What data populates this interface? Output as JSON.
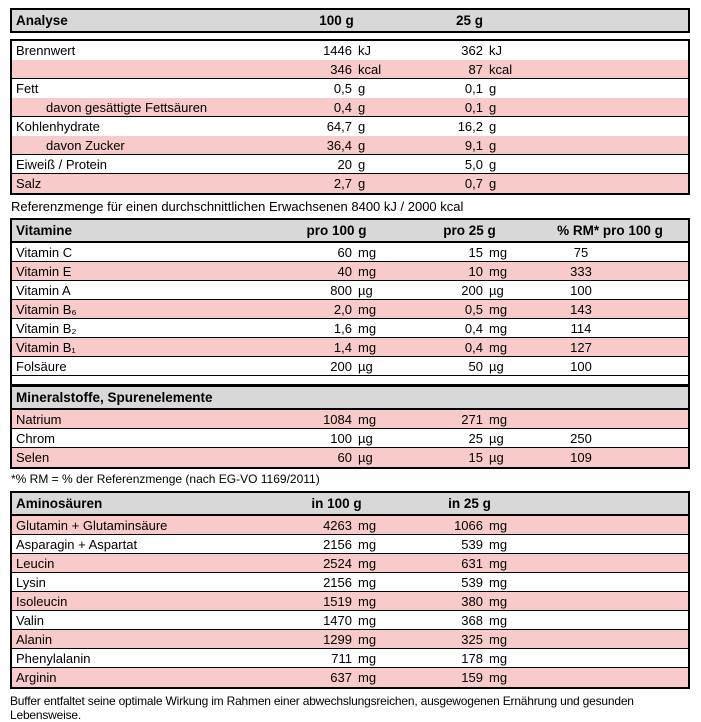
{
  "colors": {
    "pink": "#f8caca",
    "gray": "#d8d8d8",
    "border": "#000000"
  },
  "analyse": {
    "title": "Analyse",
    "col1": "100 g",
    "col2": "25 g",
    "rows": [
      {
        "label": "Brennwert",
        "v1": "1446",
        "u1": "kJ",
        "v2": "362",
        "u2": "kJ"
      },
      {
        "label": "",
        "v1": "346",
        "u1": "kcal",
        "v2": "87",
        "u2": "kcal"
      },
      {
        "label": "Fett",
        "v1": "0,5",
        "u1": "g",
        "v2": "0,1",
        "u2": "g"
      },
      {
        "label": "davon gesättigte Fettsäuren",
        "v1": "0,4",
        "u1": "g",
        "v2": "0,1",
        "u2": "g"
      },
      {
        "label": "Kohlenhydrate",
        "v1": "64,7",
        "u1": "g",
        "v2": "16,2",
        "u2": "g"
      },
      {
        "label": "davon Zucker",
        "v1": "36,4",
        "u1": "g",
        "v2": "9,1",
        "u2": "g"
      },
      {
        "label": "Eiweiß / Protein",
        "v1": "20",
        "u1": "g",
        "v2": "5,0",
        "u2": "g"
      },
      {
        "label": "Salz",
        "v1": "2,7",
        "u1": "g",
        "v2": "0,7",
        "u2": "g"
      }
    ]
  },
  "reference_note": "Referenzmenge für einen durchschnittlichen Erwachsenen 8400 kJ / 2000 kcal",
  "vitamine": {
    "title": "Vitamine",
    "col1": "pro 100 g",
    "col2": "pro 25 g",
    "col3": "% RM* pro 100 g",
    "rows": [
      {
        "label": "Vitamin C",
        "v1": "60",
        "u1": "mg",
        "v2": "15",
        "u2": "mg",
        "rm": "75"
      },
      {
        "label": "Vitamin E",
        "v1": "40",
        "u1": "mg",
        "v2": "10",
        "u2": "mg",
        "rm": "333"
      },
      {
        "label": "Vitamin A",
        "v1": "800",
        "u1": "µg",
        "v2": "200",
        "u2": "µg",
        "rm": "100"
      },
      {
        "label": "Vitamin B₆",
        "v1": "2,0",
        "u1": "mg",
        "v2": "0,5",
        "u2": "mg",
        "rm": "143"
      },
      {
        "label": "Vitamin B₂",
        "v1": "1,6",
        "u1": "mg",
        "v2": "0,4",
        "u2": "mg",
        "rm": "114"
      },
      {
        "label": "Vitamin B₁",
        "v1": "1,4",
        "u1": "mg",
        "v2": "0,4",
        "u2": "mg",
        "rm": "127"
      },
      {
        "label": "Folsäure",
        "v1": "200",
        "u1": "µg",
        "v2": "50",
        "u2": "µg",
        "rm": "100"
      }
    ]
  },
  "mineralstoffe": {
    "title": "Mineralstoffe, Spurenelemente",
    "rows": [
      {
        "label": "Natrium",
        "v1": "1084",
        "u1": "mg",
        "v2": "271",
        "u2": "mg",
        "rm": ""
      },
      {
        "label": "Chrom",
        "v1": "100",
        "u1": "µg",
        "v2": "25",
        "u2": "µg",
        "rm": "250"
      },
      {
        "label": "Selen",
        "v1": "60",
        "u1": "µg",
        "v2": "15",
        "u2": "µg",
        "rm": "109"
      }
    ]
  },
  "rm_note": "*% RM = % der Referenzmenge (nach EG-VO 1169/2011)",
  "aminosaeuren": {
    "title": "Aminosäuren",
    "col1": "in 100 g",
    "col2": "in 25 g",
    "rows": [
      {
        "label": "Glutamin + Glutaminsäure",
        "v1": "4263",
        "u1": "mg",
        "v2": "1066",
        "u2": "mg"
      },
      {
        "label": "Asparagin + Aspartat",
        "v1": "2156",
        "u1": "mg",
        "v2": "539",
        "u2": "mg"
      },
      {
        "label": "Leucin",
        "v1": "2524",
        "u1": "mg",
        "v2": "631",
        "u2": "mg"
      },
      {
        "label": "Lysin",
        "v1": "2156",
        "u1": "mg",
        "v2": "539",
        "u2": "mg"
      },
      {
        "label": "Isoleucin",
        "v1": "1519",
        "u1": "mg",
        "v2": "380",
        "u2": "mg"
      },
      {
        "label": "Valin",
        "v1": "1470",
        "u1": "mg",
        "v2": "368",
        "u2": "mg"
      },
      {
        "label": "Alanin",
        "v1": "1299",
        "u1": "mg",
        "v2": "325",
        "u2": "mg"
      },
      {
        "label": "Phenylalanin",
        "v1": "711",
        "u1": "mg",
        "v2": "178",
        "u2": "mg"
      },
      {
        "label": "Arginin",
        "v1": "637",
        "u1": "mg",
        "v2": "159",
        "u2": "mg"
      }
    ]
  },
  "footer_note": "Buffer entfaltet seine optimale Wirkung im Rahmen einer abwechslungsreichen, ausgewogenen Ernährung und gesunden Lebensweise."
}
